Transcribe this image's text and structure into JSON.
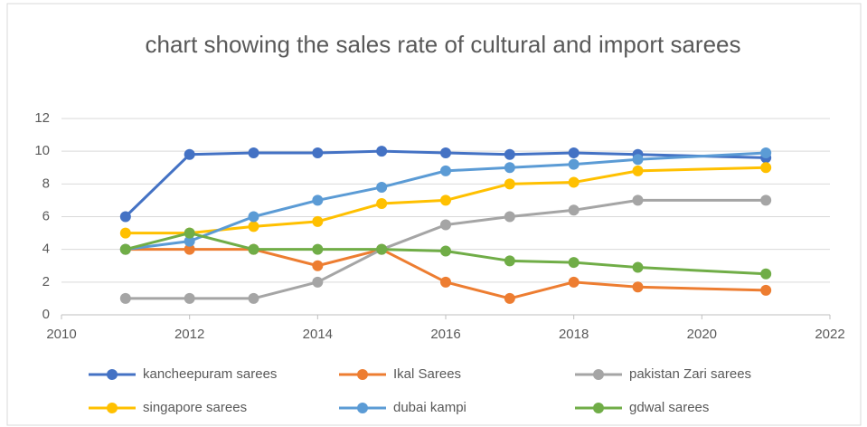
{
  "chart_data": {
    "type": "line",
    "title": "chart showing the sales rate of cultural and import sarees",
    "x": [
      2011,
      2012,
      2013,
      2014,
      2015,
      2016,
      2017,
      2018,
      2019,
      2021
    ],
    "series": [
      {
        "name": "kancheepuram sarees",
        "color": "#4472c4",
        "values": [
          6,
          9.8,
          9.9,
          9.9,
          10,
          9.9,
          9.8,
          9.9,
          9.8,
          9.6
        ]
      },
      {
        "name": "Ikal Sarees",
        "color": "#ed7d31",
        "values": [
          4,
          4,
          4,
          3,
          4,
          2,
          1,
          2,
          1.7,
          1.5
        ]
      },
      {
        "name": "pakistan Zari sarees",
        "color": "#a5a5a5",
        "values": [
          1,
          1,
          1,
          2,
          4,
          5.5,
          6,
          6.4,
          7,
          7
        ]
      },
      {
        "name": "singapore sarees",
        "color": "#ffc000",
        "values": [
          5,
          5,
          5.4,
          5.7,
          6.8,
          7,
          8,
          8.1,
          8.8,
          9
        ]
      },
      {
        "name": "dubai kampi",
        "color": "#5b9bd5",
        "values": [
          4,
          4.5,
          6,
          7,
          7.8,
          8.8,
          9,
          9.2,
          9.5,
          9.9
        ]
      },
      {
        "name": "gdwal sarees",
        "color": "#70ad47",
        "values": [
          4,
          5,
          4,
          4,
          4,
          3.9,
          3.3,
          3.2,
          2.9,
          2.5
        ]
      }
    ],
    "xlim": [
      2010,
      2022
    ],
    "xticks": [
      2010,
      2012,
      2014,
      2016,
      2018,
      2020,
      2022
    ],
    "ylim": [
      0,
      12
    ],
    "yticks": [
      0,
      2,
      4,
      6,
      8,
      10,
      12
    ],
    "grid": true,
    "legend": "bottom"
  }
}
